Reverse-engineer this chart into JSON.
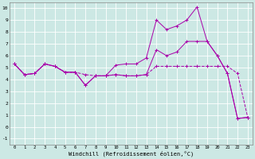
{
  "xlabel": "Windchill (Refroidissement éolien,°C)",
  "xlim": [
    -0.5,
    23.5
  ],
  "ylim": [
    -1.5,
    10.5
  ],
  "ytick_min": -1,
  "ytick_max": 10,
  "xticks": [
    0,
    1,
    2,
    3,
    4,
    5,
    6,
    7,
    8,
    9,
    10,
    11,
    12,
    13,
    14,
    15,
    16,
    17,
    18,
    19,
    20,
    21,
    22,
    23
  ],
  "yticks": [
    -1,
    0,
    1,
    2,
    3,
    4,
    5,
    6,
    7,
    8,
    9,
    10
  ],
  "bg_color": "#cce8e4",
  "line_color": "#aa00aa",
  "line1_x": [
    0,
    1,
    2,
    3,
    4,
    5,
    6,
    7,
    8,
    9,
    10,
    11,
    12,
    13,
    14,
    15,
    16,
    17,
    18,
    19,
    20,
    21,
    22,
    23
  ],
  "line1_y": [
    5.3,
    4.4,
    4.5,
    5.3,
    5.1,
    4.6,
    4.6,
    4.4,
    4.3,
    4.3,
    4.4,
    4.3,
    4.3,
    4.4,
    5.1,
    5.1,
    5.1,
    5.1,
    5.1,
    5.1,
    5.1,
    5.1,
    4.5,
    0.8
  ],
  "line2_x": [
    0,
    1,
    2,
    3,
    4,
    5,
    6,
    7,
    8,
    9,
    10,
    11,
    12,
    13,
    14,
    15,
    16,
    17,
    18,
    19,
    20,
    21,
    22,
    23
  ],
  "line2_y": [
    5.3,
    4.4,
    4.5,
    5.3,
    5.1,
    4.6,
    4.6,
    3.5,
    4.3,
    4.3,
    5.2,
    5.3,
    5.3,
    5.8,
    9.0,
    8.2,
    8.5,
    9.0,
    10.1,
    7.2,
    6.0,
    4.5,
    0.7,
    0.8
  ],
  "line3_x": [
    0,
    1,
    2,
    3,
    4,
    5,
    6,
    7,
    8,
    9,
    10,
    11,
    12,
    13,
    14,
    15,
    16,
    17,
    18,
    19,
    20,
    21,
    22,
    23
  ],
  "line3_y": [
    5.3,
    4.4,
    4.5,
    5.3,
    5.1,
    4.6,
    4.6,
    3.5,
    4.3,
    4.3,
    4.4,
    4.3,
    4.3,
    4.4,
    6.5,
    6.0,
    6.3,
    7.2,
    7.2,
    7.2,
    6.0,
    4.5,
    0.7,
    0.8
  ]
}
